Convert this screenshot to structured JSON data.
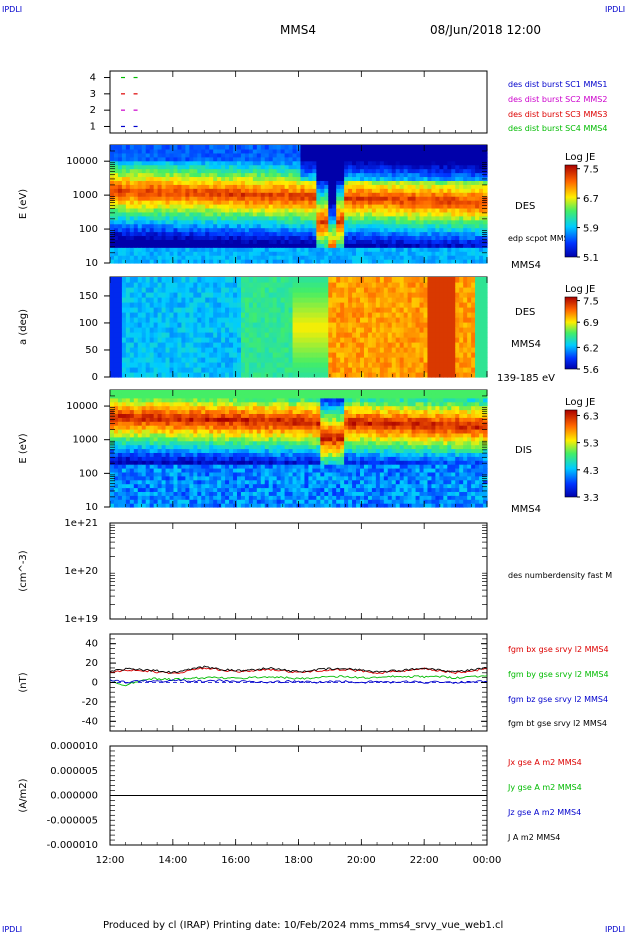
{
  "header": {
    "corner_tl": "IPDLI",
    "corner_tr": "IPDLI",
    "corner_bl": "IPDLI",
    "corner_br": "IPDLI",
    "spacecraft": "MMS4",
    "datetime": "08/Jun/2018 12:00"
  },
  "footer": {
    "credit": "Produced by cl (IRAP)    Printing date: 10/Feb/2024    mms_mms4_srvy_vue_web1.cl"
  },
  "colors": {
    "blue": "#0000cc",
    "magenta": "#cc00cc",
    "red": "#dd0000",
    "green": "#00bb00",
    "black": "#000000"
  },
  "chart_data": [
    {
      "type": "scatter",
      "id": "burst",
      "y_ticks": [
        "1",
        "2",
        "3",
        "4"
      ],
      "ylim": [
        0.6,
        4.4
      ],
      "xlim": [
        0,
        12
      ],
      "legend": [
        {
          "text": "des dist burst SC1 MMS1",
          "color": "#0000cc"
        },
        {
          "text": "des dist burst SC2 MMS2",
          "color": "#cc00cc"
        },
        {
          "text": "des dist burst SC3 MMS3",
          "color": "#dd0000"
        },
        {
          "text": "des dist burst SC4 MMS4",
          "color": "#00bb00"
        }
      ],
      "series": [
        {
          "color": "#00bb00",
          "y": 4,
          "x": [
            0.35,
            0.75
          ]
        },
        {
          "color": "#dd0000",
          "y": 3,
          "x": [
            0.35,
            0.75
          ]
        },
        {
          "color": "#cc00cc",
          "y": 2,
          "x": [
            0.35,
            0.75
          ]
        },
        {
          "color": "#0000cc",
          "y": 1,
          "x": [
            0.35,
            0.75
          ]
        }
      ]
    },
    {
      "type": "heatmap",
      "id": "des_energy",
      "ylabel": "E (eV)",
      "yscale": "log",
      "ylim": [
        10,
        30000
      ],
      "y_ticks": [
        "10",
        "100",
        "1000",
        "10000"
      ],
      "label_right": "DES",
      "label_overlay": "edp scpot MMS4",
      "label_bottom": "MMS4",
      "colorbar": {
        "title": "Log JE",
        "ticks": [
          "7.5",
          "6.7",
          "5.9",
          "5.1"
        ],
        "range": [
          5.1,
          7.6
        ]
      }
    },
    {
      "type": "heatmap",
      "id": "des_pitch",
      "ylabel": "a (deg)",
      "ylim": [
        0,
        185
      ],
      "y_ticks": [
        "0",
        "50",
        "100",
        "150"
      ],
      "label_right": "DES",
      "label_right2": "MMS4",
      "label_bottom": "139-185 eV",
      "colorbar": {
        "title": "Log JE",
        "ticks": [
          "7.5",
          "6.9",
          "6.2",
          "5.6"
        ],
        "range": [
          5.6,
          7.6
        ]
      }
    },
    {
      "type": "heatmap",
      "id": "dis_energy",
      "ylabel": "E (eV)",
      "yscale": "log",
      "ylim": [
        10,
        30000
      ],
      "y_ticks": [
        "10",
        "100",
        "1000",
        "10000"
      ],
      "label_right": "DIS",
      "label_bottom": "MMS4",
      "colorbar": {
        "title": "Log JE",
        "ticks": [
          "6.3",
          "5.3",
          "4.3",
          "3.3"
        ],
        "range": [
          3.3,
          6.5
        ]
      }
    },
    {
      "type": "line",
      "id": "density",
      "ylabel": "(cm^-3)",
      "yscale": "log",
      "y_ticks": [
        "1e+19",
        "1e+20",
        "1e+21"
      ],
      "ylim": [
        1e+19,
        1e+21
      ],
      "legend": [
        {
          "text": "des numberdensity fast M",
          "color": "#000000"
        }
      ],
      "series": []
    },
    {
      "type": "line",
      "id": "fgm",
      "ylabel": "(nT)",
      "ylim": [
        -50,
        50
      ],
      "y_ticks": [
        "-40",
        "-20",
        "0",
        "20",
        "40"
      ],
      "legend": [
        {
          "text": "fgm bx gse srvy l2 MMS4",
          "color": "#dd0000"
        },
        {
          "text": "fgm by gse srvy l2 MMS4",
          "color": "#00bb00"
        },
        {
          "text": "fgm bz gse srvy l2 MMS4",
          "color": "#0000cc"
        },
        {
          "text": "fgm bt gse srvy l2 MMS4",
          "color": "#000000"
        }
      ],
      "x": [
        0,
        0.5,
        1,
        1.5,
        2,
        2.5,
        3,
        3.5,
        4,
        4.5,
        5,
        5.5,
        6,
        6.5,
        7,
        7.5,
        8,
        8.5,
        9,
        9.5,
        10,
        10.5,
        11,
        11.5,
        12
      ],
      "series": [
        {
          "name": "fgm bx gse srvy l2 MMS4",
          "color": "#dd0000",
          "values": [
            10,
            13,
            12,
            11,
            9,
            12,
            15,
            13,
            11,
            12,
            14,
            12,
            10,
            12,
            13,
            13,
            12,
            10,
            11,
            12,
            14,
            12,
            10,
            12,
            14
          ]
        },
        {
          "name": "fgm by gse srvy l2 MMS4",
          "color": "#00bb00",
          "values": [
            2,
            -3,
            3,
            4,
            3,
            4,
            5,
            5,
            4,
            5,
            6,
            5,
            4,
            5,
            6,
            6,
            5,
            5,
            6,
            6,
            6,
            6,
            5,
            6,
            7
          ]
        },
        {
          "name": "fgm bz gse srvy l2 MMS4",
          "color": "#0000cc",
          "values": [
            3,
            0,
            2,
            1,
            2,
            2,
            1,
            2,
            1,
            1,
            0,
            1,
            1,
            0,
            1,
            1,
            0,
            1,
            0,
            1,
            0,
            1,
            0,
            1,
            1
          ]
        },
        {
          "name": "fgm bt gse srvy l2 MMS4",
          "color": "#000000",
          "values": [
            11,
            14,
            13,
            12,
            10,
            13,
            16,
            14,
            12,
            13,
            15,
            13,
            11,
            13,
            14,
            14,
            13,
            11,
            12,
            13,
            15,
            13,
            11,
            13,
            15
          ]
        }
      ]
    },
    {
      "type": "line",
      "id": "current",
      "ylabel": "(A/m2)",
      "ylim": [
        -1e-05,
        1e-05
      ],
      "y_ticks": [
        "-0.000010",
        "-0.000005",
        "0.000000",
        "0.000005",
        "0.000010"
      ],
      "legend": [
        {
          "text": "Jx gse A m2 MMS4",
          "color": "#dd0000"
        },
        {
          "text": "Jy gse A m2 MMS4",
          "color": "#00bb00"
        },
        {
          "text": "Jz gse A m2 MMS4",
          "color": "#0000cc"
        },
        {
          "text": "J A m2 MMS4",
          "color": "#000000"
        }
      ],
      "x": [
        0,
        12
      ],
      "series": [
        {
          "name": "J A m2 MMS4",
          "color": "#000000",
          "values": [
            0,
            0
          ]
        }
      ]
    }
  ],
  "x_axis": {
    "ticks": [
      "12:00",
      "14:00",
      "16:00",
      "18:00",
      "20:00",
      "22:00",
      "00:00"
    ],
    "range_hours": [
      0,
      12
    ]
  }
}
